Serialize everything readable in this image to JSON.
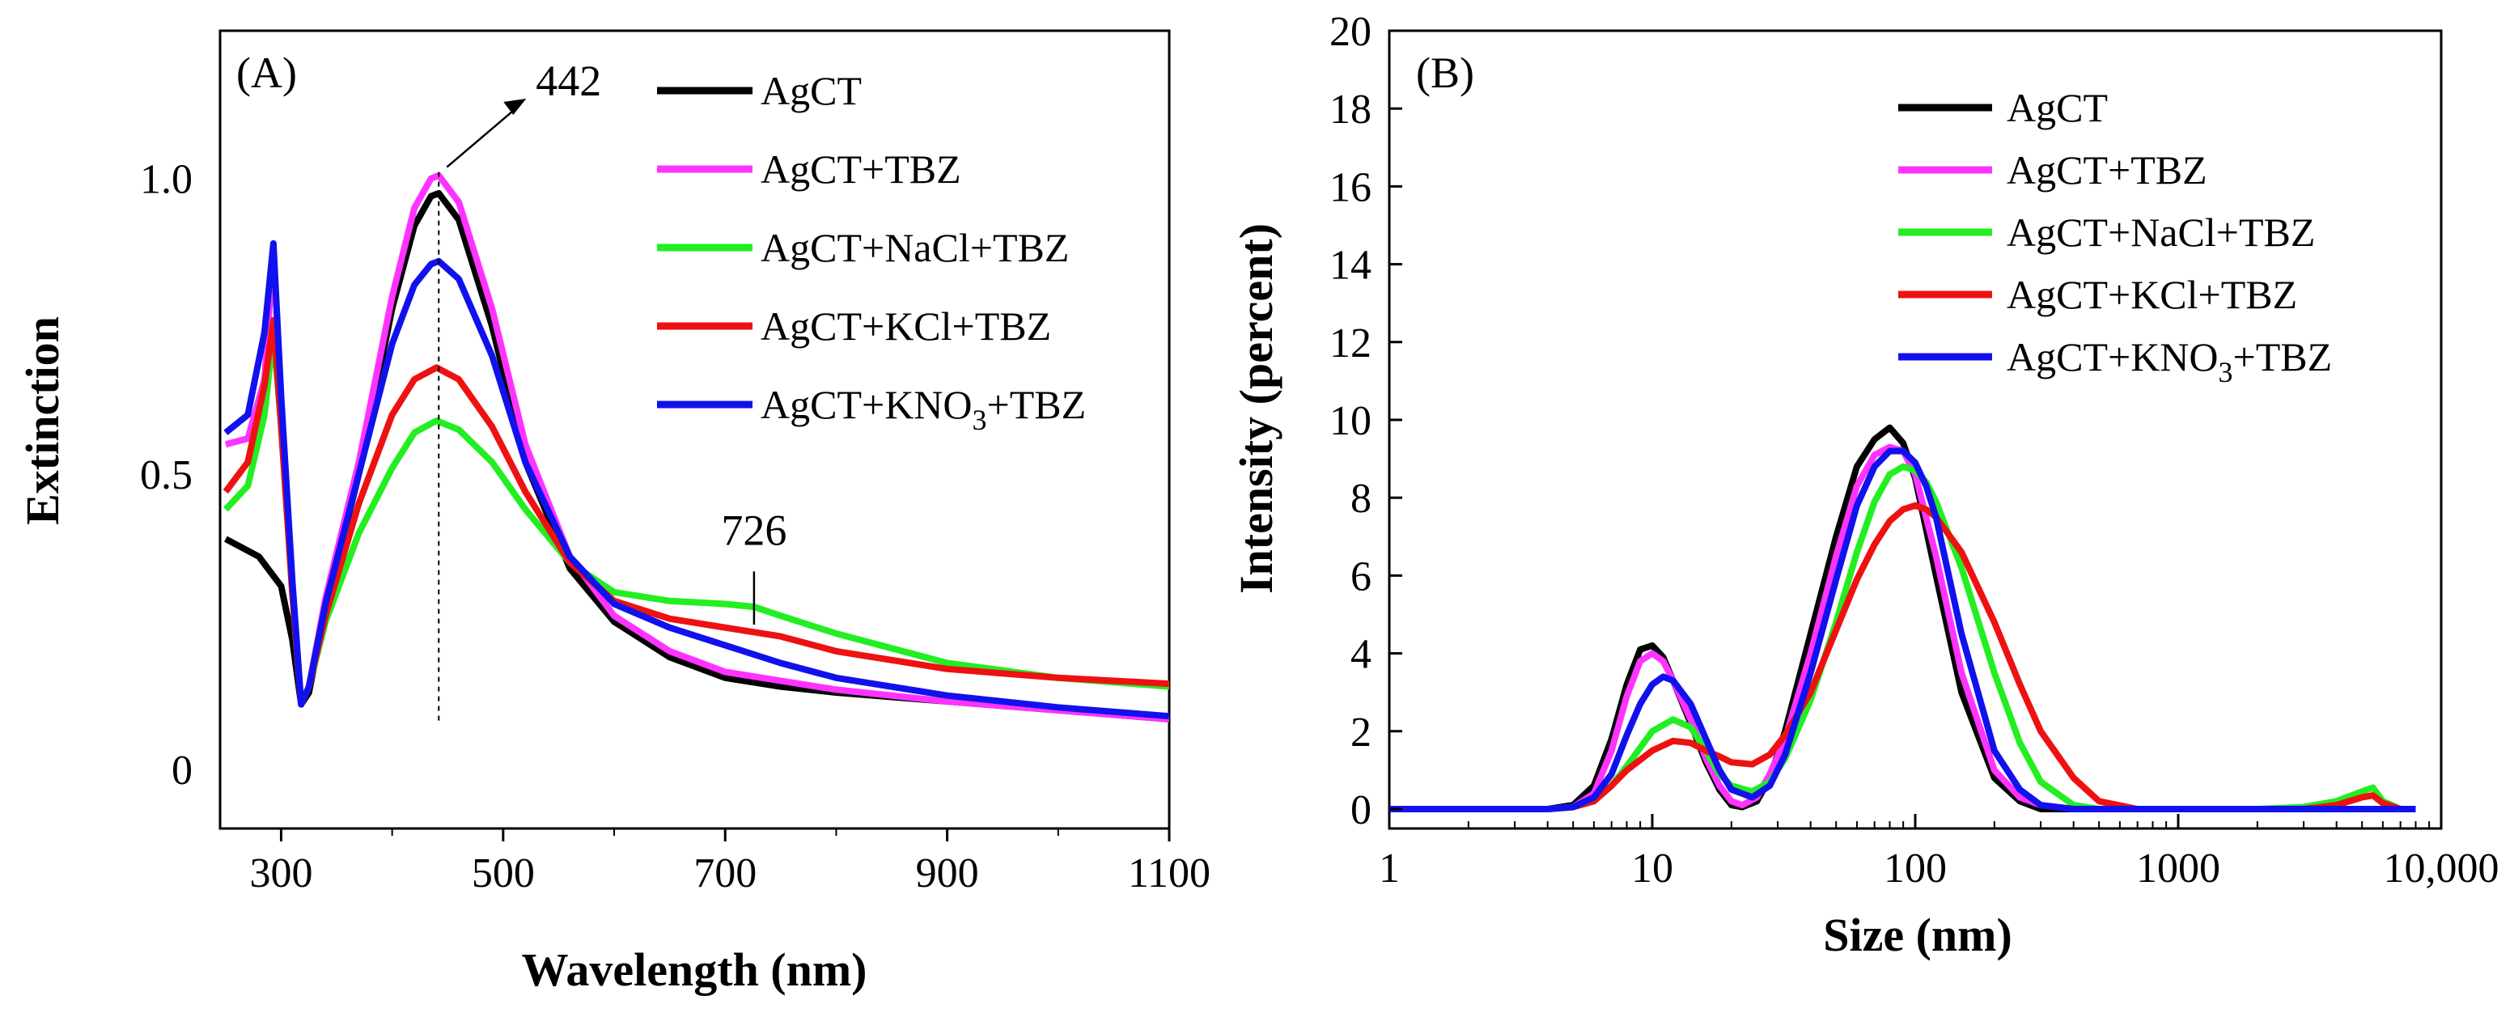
{
  "chart_data": [
    {
      "type": "line",
      "panel_label": "(A)",
      "xlabel": "Wavelength (nm)",
      "ylabel": "Extinction",
      "xlim": [
        245,
        1100
      ],
      "ylim": [
        -0.1,
        1.25
      ],
      "xticks": [
        300,
        500,
        700,
        900,
        1100
      ],
      "xtick_labels": [
        "300",
        "500",
        "700",
        "900",
        "1100"
      ],
      "yticks": [
        0,
        0.5,
        1.0
      ],
      "ytick_labels": [
        "0",
        "0.5",
        "1.0"
      ],
      "legend_position": "top-right",
      "annotations": [
        {
          "text": "442",
          "x": 442
        },
        {
          "text": "726",
          "x": 726
        }
      ],
      "series": [
        {
          "name": "AgCT",
          "color": "#000000",
          "x": [
            250,
            280,
            300,
            310,
            318,
            325,
            340,
            370,
            400,
            420,
            435,
            442,
            460,
            490,
            520,
            560,
            600,
            650,
            700,
            750,
            800,
            900,
            1000,
            1100
          ],
          "y": [
            0.39,
            0.36,
            0.31,
            0.22,
            0.11,
            0.13,
            0.27,
            0.5,
            0.78,
            0.92,
            0.97,
            0.975,
            0.93,
            0.75,
            0.52,
            0.34,
            0.25,
            0.19,
            0.155,
            0.14,
            0.13,
            0.115,
            0.1,
            0.085
          ]
        },
        {
          "name": "AgCT+TBZ",
          "color": "#ff33ff",
          "x": [
            250,
            270,
            285,
            293,
            300,
            310,
            318,
            325,
            340,
            370,
            400,
            420,
            435,
            442,
            460,
            490,
            520,
            560,
            600,
            650,
            700,
            750,
            800,
            900,
            1000,
            1100
          ],
          "y": [
            0.55,
            0.56,
            0.66,
            0.88,
            0.62,
            0.32,
            0.11,
            0.14,
            0.29,
            0.52,
            0.8,
            0.95,
            1.0,
            1.005,
            0.96,
            0.78,
            0.55,
            0.36,
            0.26,
            0.2,
            0.165,
            0.15,
            0.135,
            0.115,
            0.1,
            0.085
          ]
        },
        {
          "name": "AgCT+NaCl+TBZ",
          "color": "#22ee22",
          "x": [
            250,
            270,
            285,
            293,
            300,
            310,
            318,
            325,
            340,
            370,
            400,
            420,
            440,
            460,
            490,
            520,
            560,
            600,
            650,
            700,
            726,
            750,
            800,
            900,
            1000,
            1100
          ],
          "y": [
            0.44,
            0.48,
            0.6,
            0.74,
            0.58,
            0.3,
            0.11,
            0.14,
            0.25,
            0.4,
            0.51,
            0.57,
            0.59,
            0.575,
            0.52,
            0.44,
            0.35,
            0.3,
            0.285,
            0.28,
            0.275,
            0.26,
            0.23,
            0.18,
            0.155,
            0.14
          ]
        },
        {
          "name": "AgCT+KCl+TBZ",
          "color": "#ee1111",
          "x": [
            250,
            270,
            285,
            293,
            300,
            310,
            318,
            325,
            340,
            370,
            400,
            420,
            440,
            460,
            490,
            520,
            560,
            600,
            650,
            700,
            750,
            800,
            900,
            1000,
            1100
          ],
          "y": [
            0.47,
            0.52,
            0.65,
            0.76,
            0.58,
            0.3,
            0.11,
            0.14,
            0.26,
            0.45,
            0.6,
            0.66,
            0.68,
            0.66,
            0.58,
            0.47,
            0.35,
            0.285,
            0.255,
            0.24,
            0.225,
            0.2,
            0.17,
            0.155,
            0.145
          ]
        },
        {
          "name": "AgCT+KNO3+TBZ",
          "color": "#1111ee",
          "x": [
            250,
            270,
            285,
            293,
            300,
            310,
            318,
            325,
            340,
            370,
            400,
            420,
            435,
            442,
            460,
            490,
            520,
            560,
            600,
            650,
            700,
            750,
            800,
            900,
            1000,
            1100
          ],
          "y": [
            0.57,
            0.6,
            0.74,
            0.89,
            0.63,
            0.32,
            0.11,
            0.14,
            0.28,
            0.5,
            0.72,
            0.82,
            0.855,
            0.86,
            0.83,
            0.7,
            0.52,
            0.36,
            0.28,
            0.24,
            0.21,
            0.18,
            0.155,
            0.125,
            0.105,
            0.09
          ]
        }
      ]
    },
    {
      "type": "line",
      "panel_label": "(B)",
      "xlabel": "Size (nm)",
      "ylabel": "Intensity (percent)",
      "xscale": "log",
      "xlim": [
        1,
        10000
      ],
      "ylim": [
        -0.5,
        20
      ],
      "xticks": [
        1,
        10,
        100,
        1000,
        10000
      ],
      "xtick_labels": [
        "1",
        "10",
        "100",
        "1000",
        "10,000"
      ],
      "yticks": [
        0,
        2,
        4,
        6,
        8,
        10,
        12,
        14,
        16,
        18,
        20
      ],
      "ytick_labels": [
        "0",
        "2",
        "4",
        "6",
        "8",
        "10",
        "12",
        "14",
        "16",
        "18",
        "20"
      ],
      "legend_position": "top-right",
      "series": [
        {
          "name": "AgCT",
          "color": "#000000",
          "x": [
            1,
            4,
            5,
            6,
            7,
            8,
            9,
            10,
            11,
            12,
            14,
            16,
            18,
            20,
            22,
            25,
            28,
            32,
            40,
            50,
            60,
            70,
            80,
            90,
            100,
            120,
            150,
            200,
            250,
            300,
            400,
            1000,
            8000
          ],
          "y": [
            0,
            0,
            0.1,
            0.6,
            1.8,
            3.2,
            4.1,
            4.2,
            3.9,
            3.3,
            2.2,
            1.2,
            0.5,
            0.1,
            0.05,
            0.2,
            0.8,
            2.0,
            4.5,
            7.0,
            8.8,
            9.5,
            9.8,
            9.4,
            8.5,
            6.0,
            3.0,
            0.8,
            0.2,
            0,
            0,
            0,
            0
          ]
        },
        {
          "name": "AgCT+TBZ",
          "color": "#ff33ff",
          "x": [
            1,
            4,
            5,
            6,
            7,
            8,
            9,
            10,
            11,
            12,
            14,
            16,
            18,
            20,
            22,
            25,
            28,
            32,
            40,
            50,
            60,
            70,
            80,
            90,
            100,
            120,
            150,
            200,
            250,
            300,
            400,
            1000,
            8000
          ],
          "y": [
            0,
            0,
            0.05,
            0.4,
            1.5,
            2.9,
            3.8,
            4.0,
            3.8,
            3.3,
            2.3,
            1.3,
            0.6,
            0.2,
            0.1,
            0.3,
            0.9,
            1.8,
            4.0,
            6.5,
            8.3,
            9.1,
            9.3,
            9.2,
            8.6,
            6.5,
            3.5,
            1.0,
            0.3,
            0.1,
            0,
            0,
            0
          ]
        },
        {
          "name": "AgCT+NaCl+TBZ",
          "color": "#22ee22",
          "x": [
            1,
            4,
            5,
            6,
            7,
            8,
            10,
            12,
            14,
            16,
            18,
            20,
            24,
            28,
            32,
            40,
            50,
            60,
            70,
            80,
            90,
            100,
            110,
            120,
            150,
            200,
            250,
            300,
            400,
            500,
            1000,
            2000,
            3000,
            4000,
            5000,
            5500,
            6000,
            7000,
            8000
          ],
          "y": [
            0,
            0,
            0.05,
            0.2,
            0.6,
            1.1,
            2.0,
            2.3,
            2.1,
            1.5,
            0.9,
            0.6,
            0.45,
            0.7,
            1.3,
            2.8,
            4.8,
            6.6,
            7.9,
            8.6,
            8.8,
            8.7,
            8.4,
            7.9,
            6.2,
            3.5,
            1.7,
            0.7,
            0.1,
            0,
            0,
            0,
            0.05,
            0.2,
            0.45,
            0.55,
            0.2,
            0,
            0
          ]
        },
        {
          "name": "AgCT+KCl+TBZ",
          "color": "#ee1111",
          "x": [
            1,
            4,
            5,
            6,
            7,
            8,
            10,
            12,
            14,
            16,
            18,
            20,
            24,
            28,
            32,
            40,
            50,
            60,
            70,
            80,
            90,
            100,
            110,
            120,
            150,
            200,
            250,
            300,
            400,
            500,
            700,
            1000,
            2000,
            3000,
            4000,
            5000,
            5500,
            6000,
            7000,
            8000
          ],
          "y": [
            0,
            0,
            0.05,
            0.2,
            0.6,
            1.0,
            1.5,
            1.75,
            1.7,
            1.5,
            1.35,
            1.2,
            1.15,
            1.4,
            1.9,
            3.0,
            4.6,
            5.9,
            6.8,
            7.4,
            7.7,
            7.8,
            7.7,
            7.5,
            6.6,
            4.8,
            3.2,
            2.0,
            0.8,
            0.2,
            0,
            0,
            0,
            0,
            0.1,
            0.3,
            0.35,
            0.15,
            0,
            0
          ]
        },
        {
          "name": "AgCT+KNO3+TBZ",
          "color": "#1111ee",
          "x": [
            1,
            4,
            5,
            6,
            7,
            8,
            9,
            10,
            11,
            12,
            14,
            16,
            18,
            20,
            24,
            28,
            32,
            40,
            50,
            60,
            70,
            80,
            90,
            100,
            110,
            120,
            150,
            200,
            250,
            300,
            400,
            1000,
            8000
          ],
          "y": [
            0,
            0,
            0.05,
            0.3,
            0.9,
            1.9,
            2.7,
            3.2,
            3.4,
            3.3,
            2.7,
            1.8,
            1.0,
            0.5,
            0.3,
            0.6,
            1.4,
            3.5,
            5.9,
            7.8,
            8.8,
            9.2,
            9.2,
            8.9,
            8.3,
            7.5,
            4.5,
            1.5,
            0.5,
            0.1,
            0,
            0,
            0
          ]
        }
      ]
    }
  ]
}
